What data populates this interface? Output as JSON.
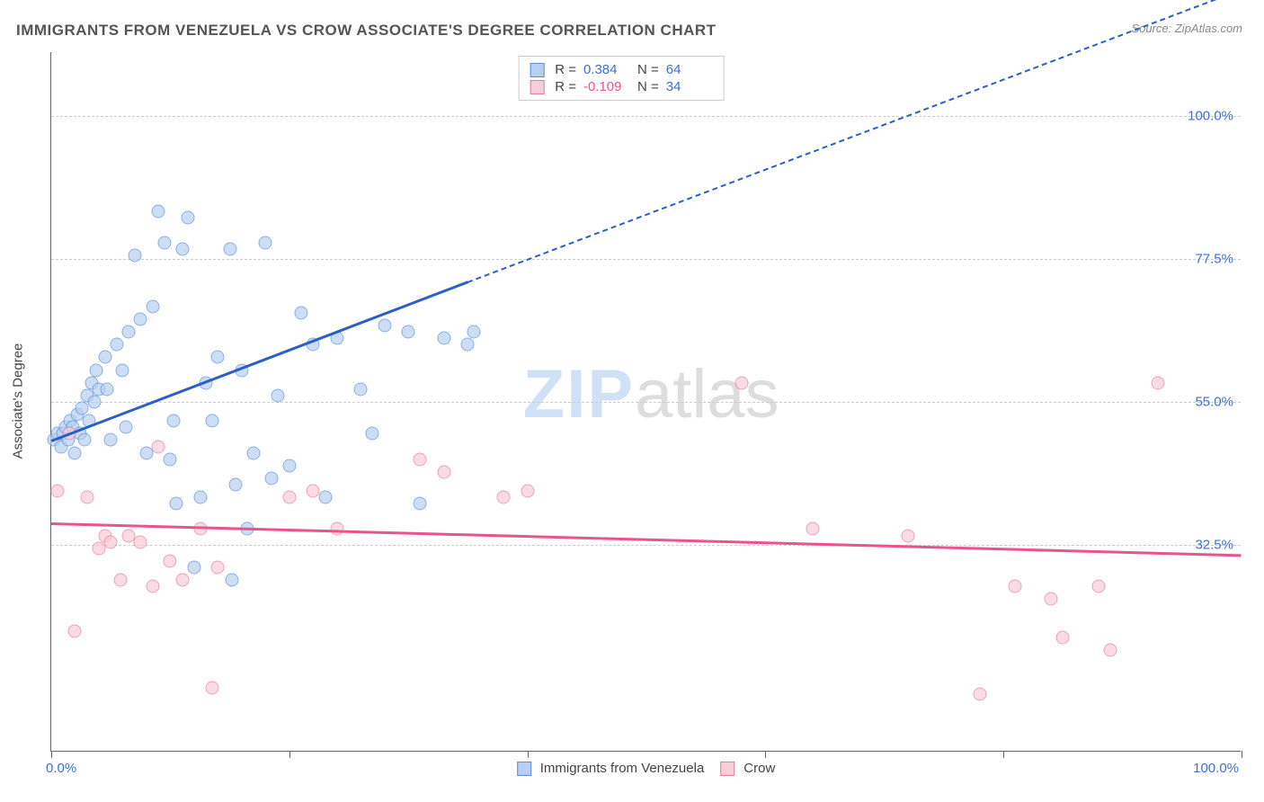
{
  "title": "IMMIGRANTS FROM VENEZUELA VS CROW ASSOCIATE'S DEGREE CORRELATION CHART",
  "source_label": "Source: ZipAtlas.com",
  "y_axis_title": "Associate's Degree",
  "watermark": {
    "part1": "ZIP",
    "part2": "atlas"
  },
  "chart": {
    "type": "scatter",
    "xlim": [
      0,
      100
    ],
    "ylim": [
      0,
      110
    ],
    "x_tick_positions": [
      0,
      20,
      40,
      60,
      80,
      100
    ],
    "x_label_min": "0.0%",
    "x_label_max": "100.0%",
    "y_gridlines": [
      32.5,
      55.0,
      77.5,
      100.0
    ],
    "y_tick_labels": [
      "32.5%",
      "55.0%",
      "77.5%",
      "100.0%"
    ],
    "background_color": "#ffffff",
    "grid_color": "#cccccc",
    "axis_color": "#666666",
    "point_radius": 7.5,
    "series": [
      {
        "name": "Immigrants from Venezuela",
        "color_fill": "#b8d0ef",
        "color_stroke": "#5a8fd8",
        "trend_color": "#2a5fc7",
        "R": "0.384",
        "N": "64",
        "trend": {
          "x1": 0,
          "y1": 49,
          "x2": 35,
          "y2": 74,
          "x2_ext": 100,
          "y2_ext": 120
        },
        "points": [
          [
            0.2,
            49
          ],
          [
            0.5,
            50
          ],
          [
            0.8,
            48
          ],
          [
            1.0,
            50
          ],
          [
            1.2,
            51
          ],
          [
            1.4,
            49
          ],
          [
            1.6,
            52
          ],
          [
            1.8,
            51
          ],
          [
            2.0,
            47
          ],
          [
            2.2,
            53
          ],
          [
            2.4,
            50
          ],
          [
            2.6,
            54
          ],
          [
            2.8,
            49
          ],
          [
            3.0,
            56
          ],
          [
            3.2,
            52
          ],
          [
            3.4,
            58
          ],
          [
            3.6,
            55
          ],
          [
            3.8,
            60
          ],
          [
            4.0,
            57
          ],
          [
            4.5,
            62
          ],
          [
            5.0,
            49
          ],
          [
            5.5,
            64
          ],
          [
            6.0,
            60
          ],
          [
            6.5,
            66
          ],
          [
            7.0,
            78
          ],
          [
            7.5,
            68
          ],
          [
            8.0,
            47
          ],
          [
            8.5,
            70
          ],
          [
            9.0,
            85
          ],
          [
            9.5,
            80
          ],
          [
            10.0,
            46
          ],
          [
            10.3,
            52
          ],
          [
            10.5,
            39
          ],
          [
            11.0,
            79
          ],
          [
            11.5,
            84
          ],
          [
            12.0,
            29
          ],
          [
            12.5,
            40
          ],
          [
            13.0,
            58
          ],
          [
            13.5,
            52
          ],
          [
            14.0,
            62
          ],
          [
            15.0,
            79
          ],
          [
            15.5,
            42
          ],
          [
            16.0,
            60
          ],
          [
            16.5,
            35
          ],
          [
            17.0,
            47
          ],
          [
            18.0,
            80
          ],
          [
            18.5,
            43
          ],
          [
            19.0,
            56
          ],
          [
            20.0,
            45
          ],
          [
            21.0,
            69
          ],
          [
            22.0,
            64
          ],
          [
            23.0,
            40
          ],
          [
            24.0,
            65
          ],
          [
            26.0,
            57
          ],
          [
            27.0,
            50
          ],
          [
            28.0,
            67
          ],
          [
            30.0,
            66
          ],
          [
            31.0,
            39
          ],
          [
            33.0,
            65
          ],
          [
            35.0,
            64
          ],
          [
            35.5,
            66
          ],
          [
            15.2,
            27
          ],
          [
            4.7,
            57
          ],
          [
            6.3,
            51
          ]
        ]
      },
      {
        "name": "Crow",
        "color_fill": "#f6cdd8",
        "color_stroke": "#e77ba0",
        "trend_color": "#e8548e",
        "R": "-0.109",
        "N": "34",
        "trend": {
          "x1": 0,
          "y1": 36,
          "x2": 100,
          "y2": 31
        },
        "points": [
          [
            0.5,
            41
          ],
          [
            1.5,
            50
          ],
          [
            2.0,
            19
          ],
          [
            3.0,
            40
          ],
          [
            4.0,
            32
          ],
          [
            4.5,
            34
          ],
          [
            5.0,
            33
          ],
          [
            5.8,
            27
          ],
          [
            6.5,
            34
          ],
          [
            7.5,
            33
          ],
          [
            8.5,
            26
          ],
          [
            9.0,
            48
          ],
          [
            10.0,
            30
          ],
          [
            11.0,
            27
          ],
          [
            12.5,
            35
          ],
          [
            13.5,
            10
          ],
          [
            14.0,
            29
          ],
          [
            20.0,
            40
          ],
          [
            22.0,
            41
          ],
          [
            24.0,
            35
          ],
          [
            31.0,
            46
          ],
          [
            33.0,
            44
          ],
          [
            38.0,
            40
          ],
          [
            40.0,
            41
          ],
          [
            58.0,
            58
          ],
          [
            64.0,
            35
          ],
          [
            72.0,
            34
          ],
          [
            78.0,
            9
          ],
          [
            81.0,
            26
          ],
          [
            84.0,
            24
          ],
          [
            85.0,
            18
          ],
          [
            88.0,
            26
          ],
          [
            89.0,
            16
          ],
          [
            93.0,
            58
          ]
        ]
      }
    ]
  },
  "legend_stats": {
    "rows": [
      {
        "swatch_fill": "#b8d0ef",
        "swatch_stroke": "#5a8fd8",
        "r_label": "R =",
        "r_val": "0.384",
        "r_color": "#3b6fd6",
        "n_label": "N =",
        "n_val": "64",
        "n_color": "#3b6fd6"
      },
      {
        "swatch_fill": "#f6cdd8",
        "swatch_stroke": "#e77ba0",
        "r_label": "R =",
        "r_val": "-0.109",
        "r_color": "#e8548e",
        "n_label": "N =",
        "n_val": "34",
        "n_color": "#3b6fd6"
      }
    ]
  },
  "bottom_legend": [
    {
      "swatch_fill": "#b8d0ef",
      "swatch_stroke": "#5a8fd8",
      "label": "Immigrants from Venezuela"
    },
    {
      "swatch_fill": "#f6cdd8",
      "swatch_stroke": "#e77ba0",
      "label": "Crow"
    }
  ]
}
